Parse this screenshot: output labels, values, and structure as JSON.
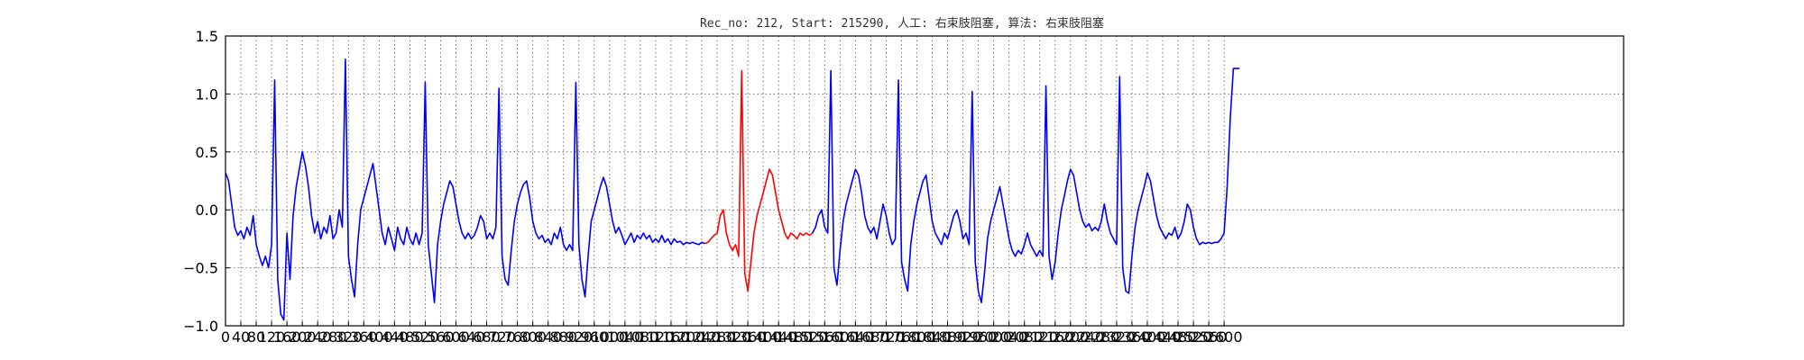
{
  "chart_data": {
    "type": "line",
    "title": "Rec_no: 212, Start: 215290, 人工: 右束肢阻塞, 算法: 右束肢阻塞",
    "xlabel": "",
    "ylabel": "",
    "xlim": [
      0,
      3640
    ],
    "ylim": [
      -1.0,
      1.5
    ],
    "grid": true,
    "yticks": [
      -1.0,
      -0.5,
      0.0,
      0.5,
      1.0,
      1.5
    ],
    "ytick_labels": [
      "−1.0",
      "−0.5",
      "0.0",
      "0.5",
      "1.0",
      "1.5"
    ],
    "xtick_labels": [
      "0",
      "40",
      "80",
      "120",
      "160",
      "200",
      "240",
      "280",
      "320",
      "360",
      "400",
      "440",
      "480",
      "520",
      "560",
      "600",
      "640",
      "680",
      "720",
      "760",
      "800",
      "840",
      "880",
      "920",
      "960",
      "1000",
      "1040",
      "1080",
      "1120",
      "1160",
      "1200",
      "1240",
      "1280",
      "1320",
      "1360",
      "1400",
      "1440",
      "1480",
      "1520",
      "1560",
      "1600",
      "1640",
      "1680",
      "1720",
      "1760",
      "1800",
      "1840",
      "1880",
      "1920",
      "1960",
      "2000",
      "2040",
      "2080",
      "2120",
      "2160",
      "2200",
      "2240",
      "2280",
      "2320",
      "2360",
      "2400",
      "2440",
      "2480",
      "2520",
      "2560",
      "2600"
    ],
    "series": [
      {
        "color": "#0000ff",
        "x": [
          0,
          8,
          16,
          24,
          32,
          40,
          48,
          56,
          64,
          72,
          80,
          88,
          96,
          104,
          112,
          120,
          128,
          136,
          144,
          152,
          160,
          168,
          176,
          184,
          192,
          200,
          208,
          216,
          224,
          232,
          240,
          248,
          256,
          264,
          272,
          280,
          288,
          296,
          304,
          312,
          320,
          328,
          336,
          344,
          352,
          360,
          368,
          376,
          384,
          392,
          400,
          408,
          416,
          424,
          432,
          440,
          448,
          456,
          464,
          472,
          480,
          488,
          496,
          504,
          512,
          520,
          528,
          536,
          544,
          552,
          560,
          568,
          576,
          584,
          592,
          600,
          608,
          616,
          624,
          632,
          640,
          648,
          656,
          664,
          672,
          680,
          688,
          696,
          704,
          712,
          720,
          728,
          736,
          744,
          752,
          760,
          768,
          776,
          784,
          792,
          800,
          808,
          816,
          824,
          832,
          840,
          848,
          856,
          864,
          872,
          880,
          888,
          896,
          904,
          912,
          920,
          928,
          936,
          944,
          952,
          960,
          968,
          976,
          984,
          992,
          1000,
          1008,
          1016,
          1024,
          1032,
          1040,
          1048,
          1056,
          1064,
          1072,
          1080,
          1088,
          1096,
          1104,
          1112,
          1120,
          1128,
          1136,
          1144,
          1152,
          1160,
          1168,
          1176,
          1184,
          1192,
          1200,
          1208,
          1216,
          1224,
          1232,
          1240,
          1248
        ],
        "y": [
          0.32,
          0.25,
          0.05,
          -0.15,
          -0.22,
          -0.18,
          -0.25,
          -0.15,
          -0.22,
          -0.05,
          -0.3,
          -0.4,
          -0.48,
          -0.4,
          -0.5,
          -0.3,
          1.12,
          -0.6,
          -0.9,
          -0.95,
          -0.2,
          -0.6,
          -0.05,
          0.2,
          0.35,
          0.5,
          0.38,
          0.2,
          -0.05,
          -0.2,
          -0.1,
          -0.25,
          -0.15,
          -0.2,
          -0.05,
          -0.25,
          -0.2,
          0.0,
          -0.15,
          1.3,
          -0.4,
          -0.6,
          -0.75,
          -0.3,
          0.0,
          0.1,
          0.2,
          0.3,
          0.4,
          0.2,
          0.0,
          -0.2,
          -0.3,
          -0.15,
          -0.25,
          -0.35,
          -0.15,
          -0.25,
          -0.3,
          -0.15,
          -0.25,
          -0.3,
          -0.2,
          -0.3,
          -0.2,
          1.1,
          -0.3,
          -0.55,
          -0.8,
          -0.3,
          -0.1,
          0.05,
          0.15,
          0.25,
          0.2,
          0.05,
          -0.1,
          -0.2,
          -0.25,
          -0.2,
          -0.25,
          -0.22,
          -0.15,
          -0.05,
          -0.1,
          -0.25,
          -0.2,
          -0.25,
          -0.15,
          1.05,
          -0.4,
          -0.6,
          -0.65,
          -0.35,
          -0.1,
          0.05,
          0.15,
          0.22,
          0.25,
          0.1,
          -0.1,
          -0.2,
          -0.25,
          -0.22,
          -0.28,
          -0.25,
          -0.3,
          -0.2,
          -0.25,
          -0.15,
          -0.3,
          -0.35,
          -0.3,
          -0.35,
          1.1,
          -0.3,
          -0.6,
          -0.75,
          -0.4,
          -0.1,
          0.0,
          0.1,
          0.2,
          0.28,
          0.2,
          0.05,
          -0.1,
          -0.2,
          -0.15,
          -0.22,
          -0.3,
          -0.25,
          -0.2,
          -0.28,
          -0.22,
          -0.25,
          -0.2,
          -0.25,
          -0.22,
          -0.28,
          -0.25,
          -0.28,
          -0.22,
          -0.28,
          -0.25,
          -0.3,
          -0.25,
          -0.28,
          -0.27,
          -0.3,
          -0.28,
          -0.29,
          -0.28,
          -0.29,
          -0.3,
          -0.28,
          -0.29
        ]
      },
      {
        "color": "#ff0000",
        "x": [
          1248,
          1256,
          1264,
          1272,
          1280,
          1288,
          1296,
          1304,
          1312,
          1320,
          1328,
          1336,
          1344,
          1352,
          1360,
          1368,
          1376,
          1384,
          1392,
          1400,
          1408,
          1416,
          1424,
          1432,
          1440,
          1448,
          1456,
          1464,
          1472,
          1480,
          1488,
          1496,
          1504,
          1512,
          1520,
          1528
        ],
        "y": [
          -0.29,
          -0.28,
          -0.25,
          -0.22,
          -0.2,
          -0.05,
          0.0,
          -0.2,
          -0.3,
          -0.35,
          -0.3,
          -0.4,
          1.2,
          -0.55,
          -0.7,
          -0.45,
          -0.2,
          -0.05,
          0.05,
          0.15,
          0.25,
          0.35,
          0.3,
          0.15,
          0.0,
          -0.1,
          -0.2,
          -0.25,
          -0.2,
          -0.22,
          -0.25,
          -0.2,
          -0.22,
          -0.2,
          -0.22,
          -0.2
        ]
      },
      {
        "color": "#0000ff",
        "x": [
          1528,
          1536,
          1544,
          1552,
          1560,
          1568,
          1576,
          1584,
          1592,
          1600,
          1608,
          1616,
          1624,
          1632,
          1640,
          1648,
          1656,
          1664,
          1672,
          1680,
          1688,
          1696,
          1704,
          1712,
          1720,
          1728,
          1736,
          1744,
          1752,
          1760,
          1768,
          1776,
          1784,
          1792,
          1800,
          1808,
          1816,
          1824,
          1832,
          1840,
          1848,
          1856,
          1864,
          1872,
          1880,
          1888,
          1896,
          1904,
          1912,
          1920,
          1928,
          1936,
          1944,
          1952,
          1960,
          1968,
          1976,
          1984,
          1992,
          2000,
          2008,
          2016,
          2024,
          2032,
          2040,
          2048,
          2056,
          2064,
          2072,
          2080,
          2088,
          2096,
          2104,
          2112,
          2120,
          2128,
          2136,
          2144,
          2152,
          2160,
          2168,
          2176,
          2184,
          2192,
          2200,
          2208,
          2216,
          2224,
          2232,
          2240,
          2248,
          2256,
          2264,
          2272,
          2280,
          2288,
          2296,
          2304,
          2312,
          2320,
          2328,
          2336,
          2344,
          2352,
          2360,
          2368,
          2376,
          2384,
          2392,
          2400,
          2408,
          2416,
          2424,
          2432,
          2440,
          2448,
          2456,
          2464,
          2472,
          2480,
          2488,
          2496,
          2504,
          2512,
          2520,
          2528,
          2536,
          2544,
          2552,
          2560,
          2568,
          2576,
          2584,
          2592,
          2600,
          2608,
          2616,
          2624,
          2632,
          2640
        ],
        "y": [
          -0.2,
          -0.15,
          -0.05,
          0.0,
          -0.15,
          -0.2,
          1.2,
          -0.5,
          -0.65,
          -0.35,
          -0.1,
          0.05,
          0.15,
          0.25,
          0.35,
          0.3,
          0.15,
          -0.05,
          -0.15,
          -0.2,
          -0.15,
          -0.25,
          -0.1,
          0.05,
          -0.05,
          -0.2,
          -0.3,
          -0.25,
          1.12,
          -0.45,
          -0.6,
          -0.7,
          -0.3,
          -0.1,
          0.05,
          0.15,
          0.25,
          0.3,
          0.1,
          -0.1,
          -0.2,
          -0.25,
          -0.3,
          -0.2,
          -0.25,
          -0.15,
          -0.05,
          0.0,
          -0.1,
          -0.25,
          -0.2,
          -0.3,
          1.02,
          -0.45,
          -0.7,
          -0.8,
          -0.55,
          -0.25,
          -0.1,
          0.0,
          0.1,
          0.2,
          0.05,
          -0.1,
          -0.25,
          -0.35,
          -0.4,
          -0.35,
          -0.38,
          -0.3,
          -0.2,
          -0.3,
          -0.35,
          -0.4,
          -0.35,
          -0.4,
          1.07,
          -0.4,
          -0.6,
          -0.45,
          -0.2,
          0.0,
          0.12,
          0.25,
          0.35,
          0.3,
          0.15,
          0.0,
          -0.1,
          -0.15,
          -0.12,
          -0.18,
          -0.15,
          -0.18,
          -0.1,
          0.05,
          -0.1,
          -0.2,
          -0.25,
          -0.3,
          1.15,
          -0.5,
          -0.7,
          -0.72,
          -0.4,
          -0.15,
          0.0,
          0.1,
          0.2,
          0.32,
          0.25,
          0.1,
          -0.05,
          -0.15,
          -0.2,
          -0.25,
          -0.2,
          -0.22,
          -0.15,
          -0.25,
          -0.2,
          -0.1,
          0.05,
          0.0,
          -0.15,
          -0.25,
          -0.3,
          -0.28,
          -0.29,
          -0.28,
          -0.29,
          -0.28,
          -0.28,
          -0.25,
          -0.2,
          0.2,
          0.8,
          1.22,
          1.22,
          1.22
        ]
      }
    ]
  }
}
